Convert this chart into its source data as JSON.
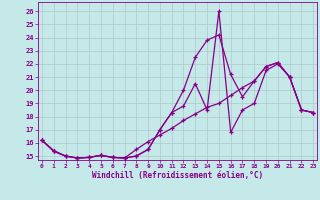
{
  "xlabel": "Windchill (Refroidissement éolien,°C)",
  "background_color": "#c5e8e8",
  "grid_color": "#b0c8c8",
  "line_color": "#880088",
  "x_ticks": [
    0,
    1,
    2,
    3,
    4,
    5,
    6,
    7,
    8,
    9,
    10,
    11,
    12,
    13,
    14,
    15,
    16,
    17,
    18,
    19,
    20,
    21,
    22,
    23
  ],
  "y_ticks": [
    15,
    16,
    17,
    18,
    19,
    20,
    21,
    22,
    23,
    24,
    25,
    26
  ],
  "xlim": [
    -0.3,
    23.3
  ],
  "ylim": [
    14.7,
    26.7
  ],
  "series1": [
    16.2,
    15.4,
    15.0,
    14.85,
    14.9,
    15.05,
    14.9,
    14.85,
    15.0,
    15.5,
    17.0,
    18.3,
    18.8,
    20.5,
    18.5,
    26.0,
    16.8,
    18.5,
    19.0,
    21.5,
    22.0,
    21.0,
    18.5,
    18.3
  ],
  "series2": [
    16.2,
    15.4,
    15.0,
    14.85,
    14.9,
    15.05,
    14.9,
    14.85,
    15.0,
    15.5,
    17.0,
    18.3,
    20.0,
    22.5,
    23.8,
    24.2,
    21.2,
    19.5,
    20.7,
    21.8,
    22.1,
    21.0,
    18.5,
    18.3
  ],
  "series3": [
    16.2,
    15.35,
    15.0,
    14.85,
    14.9,
    15.05,
    14.9,
    14.85,
    15.5,
    16.1,
    16.6,
    17.1,
    17.7,
    18.2,
    18.7,
    19.0,
    19.6,
    20.2,
    20.7,
    21.8,
    22.1,
    21.0,
    18.5,
    18.3
  ]
}
